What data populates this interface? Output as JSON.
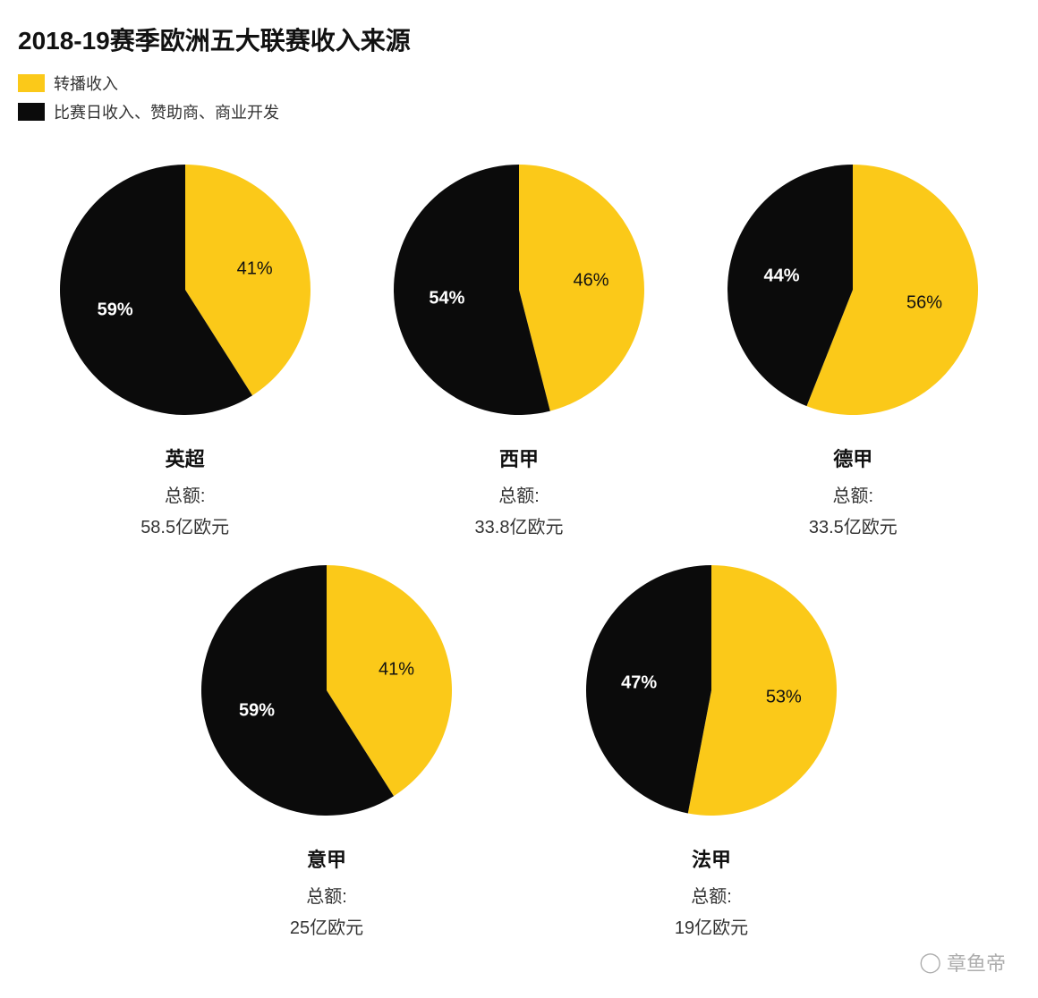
{
  "title": "2018-19赛季欧洲五大联赛收入来源",
  "legend": {
    "items": [
      {
        "label": "转播收入",
        "color": "#fbc919"
      },
      {
        "label": "比赛日收入、赞助商、商业开发",
        "color": "#0b0b0b"
      }
    ]
  },
  "colors": {
    "broadcast": "#fbc919",
    "other": "#0b0b0b",
    "label_on_yellow": "#111111",
    "label_on_black": "#ffffff",
    "background": "#ffffff",
    "text": "#222222"
  },
  "pie": {
    "radius": 140,
    "label_fontsize": 20,
    "start_angle_deg": 0,
    "direction": "clockwise"
  },
  "total_label": "总额:",
  "leagues": [
    {
      "name": "英超",
      "broadcast_pct": 41,
      "other_pct": 59,
      "total": "58.5亿欧元"
    },
    {
      "name": "西甲",
      "broadcast_pct": 46,
      "other_pct": 54,
      "total": "33.8亿欧元"
    },
    {
      "name": "德甲",
      "broadcast_pct": 56,
      "other_pct": 44,
      "total": "33.5亿欧元"
    },
    {
      "name": "意甲",
      "broadcast_pct": 41,
      "other_pct": 59,
      "total": "25亿欧元"
    },
    {
      "name": "法甲",
      "broadcast_pct": 53,
      "other_pct": 47,
      "total": "19亿欧元"
    }
  ],
  "watermark": "章鱼帝"
}
